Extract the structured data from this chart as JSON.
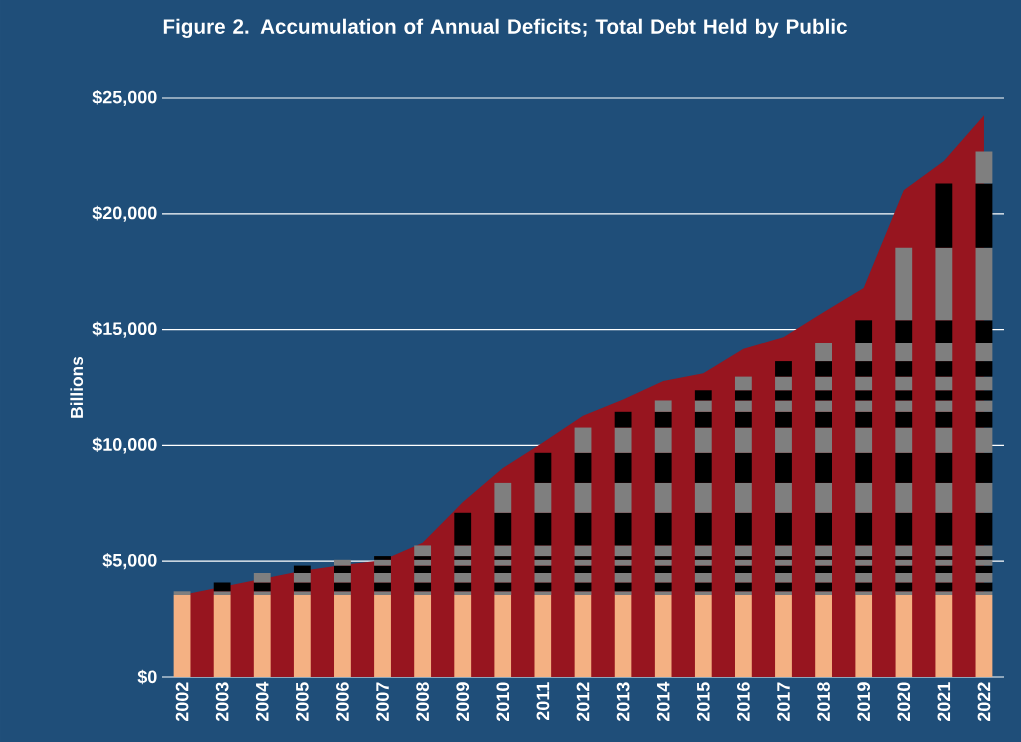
{
  "chart_data": [
    {
      "type": "area",
      "title": "Figure 2. Accumulation of Annual Deficits; Total Debt Held by Public",
      "ylabel": "Billions",
      "grid": "y",
      "categories": [
        "2002",
        "2003",
        "2004",
        "2005",
        "2006",
        "2007",
        "2008",
        "2009",
        "2010",
        "2011",
        "2012",
        "2013",
        "2014",
        "2015",
        "2016",
        "2017",
        "2018",
        "2019",
        "2020",
        "2021",
        "2022"
      ],
      "ylim": [
        0,
        25000
      ],
      "yticks": [
        {
          "value": 0,
          "label": "$0"
        },
        {
          "value": 5000,
          "label": "$5,000"
        },
        {
          "value": 10000,
          "label": "$10,000"
        },
        {
          "value": 15000,
          "label": "$15,000"
        },
        {
          "value": 20000,
          "label": "$20,000"
        },
        {
          "value": 25000,
          "label": "$25,000"
        }
      ],
      "series": [
        {
          "color": "#97151f",
          "values": [
            3540,
            null,
            null,
            4590,
            4830,
            5040,
            5800,
            7540,
            9020,
            10130,
            11280,
            11980,
            12780,
            13120,
            14170,
            14670,
            15750,
            16800,
            21020,
            22280,
            24250
          ]
        }
      ]
    },
    {
      "type": "bar",
      "stacked": true,
      "tick_labels": false,
      "categories": [
        "2002",
        "2003",
        "2004",
        "2005",
        "2006",
        "2007",
        "2008",
        "2009",
        "2010",
        "2011",
        "2012",
        "2013",
        "2014",
        "2015",
        "2016",
        "2017",
        "2018",
        "2019",
        "2020",
        "2021",
        "2022"
      ],
      "ylim": [
        0,
        25000
      ],
      "series": [
        {
          "color": "#f4b183",
          "values": [
            3540,
            3540,
            3540,
            3540,
            3540,
            3540,
            3540,
            3540,
            3540,
            3540,
            3540,
            3540,
            3540,
            3540,
            3540,
            3540,
            3540,
            3540,
            3540,
            3540,
            3540
          ]
        },
        {
          "color": "#7f7f7f",
          "values": [
            160,
            160,
            160,
            160,
            160,
            160,
            160,
            160,
            160,
            160,
            160,
            160,
            160,
            160,
            160,
            160,
            160,
            160,
            160,
            160,
            160
          ]
        },
        {
          "color": "#000000",
          "values": [
            null,
            380,
            380,
            380,
            380,
            380,
            380,
            380,
            380,
            380,
            380,
            380,
            380,
            380,
            380,
            380,
            380,
            380,
            380,
            380,
            380
          ]
        },
        {
          "color": "#7f7f7f",
          "values": [
            null,
            null,
            410,
            410,
            410,
            410,
            410,
            410,
            410,
            410,
            410,
            410,
            410,
            410,
            410,
            410,
            410,
            410,
            410,
            410,
            410
          ]
        },
        {
          "color": "#000000",
          "values": [
            null,
            null,
            null,
            320,
            320,
            320,
            320,
            320,
            320,
            320,
            320,
            320,
            320,
            320,
            320,
            320,
            320,
            320,
            320,
            320,
            320
          ]
        },
        {
          "color": "#7f7f7f",
          "values": [
            null,
            null,
            null,
            null,
            250,
            250,
            250,
            250,
            250,
            250,
            250,
            250,
            250,
            250,
            250,
            250,
            250,
            250,
            250,
            250,
            250
          ]
        },
        {
          "color": "#000000",
          "values": [
            null,
            null,
            null,
            null,
            null,
            160,
            160,
            160,
            160,
            160,
            160,
            160,
            160,
            160,
            160,
            160,
            160,
            160,
            160,
            160,
            160
          ]
        },
        {
          "color": "#7f7f7f",
          "values": [
            null,
            null,
            null,
            null,
            null,
            null,
            460,
            460,
            460,
            460,
            460,
            460,
            460,
            460,
            460,
            460,
            460,
            460,
            460,
            460,
            460
          ]
        },
        {
          "color": "#000000",
          "values": [
            null,
            null,
            null,
            null,
            null,
            null,
            null,
            1410,
            1410,
            1410,
            1410,
            1410,
            1410,
            1410,
            1410,
            1410,
            1410,
            1410,
            1410,
            1410,
            1410
          ]
        },
        {
          "color": "#7f7f7f",
          "values": [
            null,
            null,
            null,
            null,
            null,
            null,
            null,
            null,
            1290,
            1290,
            1290,
            1290,
            1290,
            1290,
            1290,
            1290,
            1290,
            1290,
            1290,
            1290,
            1290
          ]
        },
        {
          "color": "#000000",
          "values": [
            null,
            null,
            null,
            null,
            null,
            null,
            null,
            null,
            null,
            1300,
            1300,
            1300,
            1300,
            1300,
            1300,
            1300,
            1300,
            1300,
            1300,
            1300,
            1300
          ]
        },
        {
          "color": "#7f7f7f",
          "values": [
            null,
            null,
            null,
            null,
            null,
            null,
            null,
            null,
            null,
            null,
            1090,
            1090,
            1090,
            1090,
            1090,
            1090,
            1090,
            1090,
            1090,
            1090,
            1090
          ]
        },
        {
          "color": "#000000",
          "values": [
            null,
            null,
            null,
            null,
            null,
            null,
            null,
            null,
            null,
            null,
            null,
            680,
            680,
            680,
            680,
            680,
            680,
            680,
            680,
            680,
            680
          ]
        },
        {
          "color": "#7f7f7f",
          "values": [
            null,
            null,
            null,
            null,
            null,
            null,
            null,
            null,
            null,
            null,
            null,
            null,
            490,
            490,
            490,
            490,
            490,
            490,
            490,
            490,
            490
          ]
        },
        {
          "color": "#000000",
          "values": [
            null,
            null,
            null,
            null,
            null,
            null,
            null,
            null,
            null,
            null,
            null,
            null,
            null,
            440,
            440,
            440,
            440,
            440,
            440,
            440,
            440
          ]
        },
        {
          "color": "#7f7f7f",
          "values": [
            null,
            null,
            null,
            null,
            null,
            null,
            null,
            null,
            null,
            null,
            null,
            null,
            null,
            null,
            590,
            590,
            590,
            590,
            590,
            590,
            590
          ]
        },
        {
          "color": "#000000",
          "values": [
            null,
            null,
            null,
            null,
            null,
            null,
            null,
            null,
            null,
            null,
            null,
            null,
            null,
            null,
            null,
            670,
            670,
            670,
            670,
            670,
            670
          ]
        },
        {
          "color": "#7f7f7f",
          "values": [
            null,
            null,
            null,
            null,
            null,
            null,
            null,
            null,
            null,
            null,
            null,
            null,
            null,
            null,
            null,
            null,
            780,
            780,
            780,
            780,
            780
          ]
        },
        {
          "color": "#000000",
          "values": [
            null,
            null,
            null,
            null,
            null,
            null,
            null,
            null,
            null,
            null,
            null,
            null,
            null,
            null,
            null,
            null,
            null,
            980,
            980,
            980,
            980
          ]
        },
        {
          "color": "#7f7f7f",
          "values": [
            null,
            null,
            null,
            null,
            null,
            null,
            null,
            null,
            null,
            null,
            null,
            null,
            null,
            null,
            null,
            null,
            null,
            null,
            3130,
            3130,
            3130
          ]
        },
        {
          "color": "#000000",
          "values": [
            null,
            null,
            null,
            null,
            null,
            null,
            null,
            null,
            null,
            null,
            null,
            null,
            null,
            null,
            null,
            null,
            null,
            null,
            null,
            2780,
            2780
          ]
        },
        {
          "color": "#7f7f7f",
          "values": [
            null,
            null,
            null,
            null,
            null,
            null,
            null,
            null,
            null,
            null,
            null,
            null,
            null,
            null,
            null,
            null,
            null,
            null,
            null,
            null,
            1380
          ]
        }
      ]
    }
  ]
}
